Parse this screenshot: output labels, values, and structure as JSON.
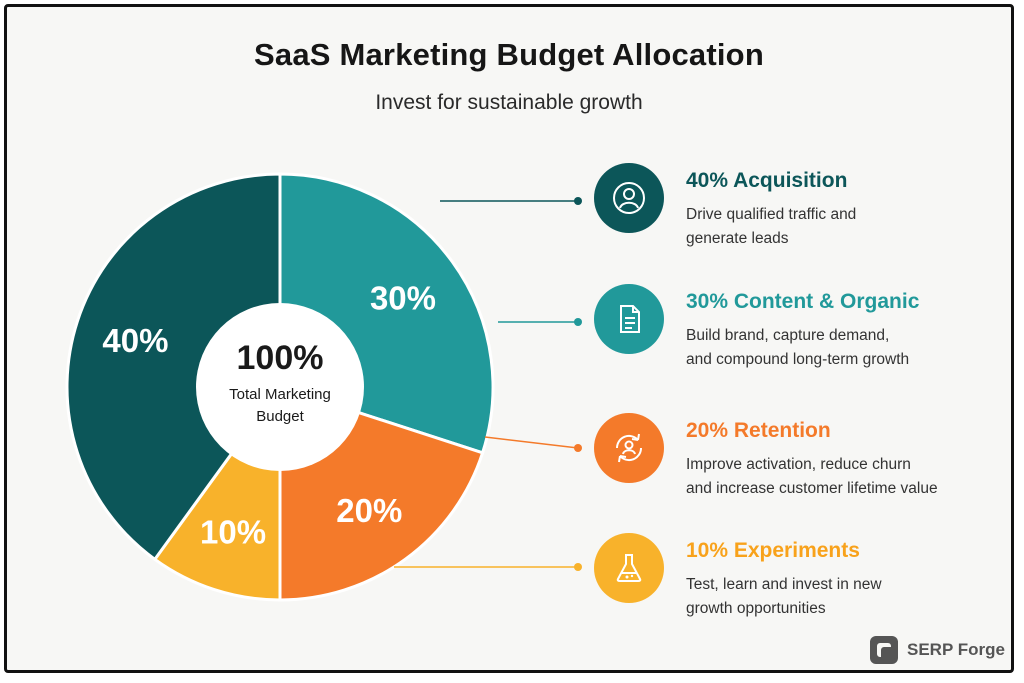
{
  "title": "SaaS Marketing Budget Allocation",
  "subtitle": "Invest for sustainable growth",
  "center": {
    "value": "100%",
    "label_line1": "Total Marketing",
    "label_line2": "Budget"
  },
  "chart_data": {
    "type": "pie",
    "title": "SaaS Marketing Budget Allocation",
    "subtitle": "Invest for sustainable growth",
    "slices": [
      {
        "name": "Content & Organic",
        "value": 30,
        "label": "30%",
        "color": "#21999a"
      },
      {
        "name": "Retention",
        "value": 20,
        "label": "20%",
        "color": "#f47a2a"
      },
      {
        "name": "Experiments",
        "value": 10,
        "label": "10%",
        "color": "#f8b22b"
      },
      {
        "name": "Acquisition",
        "value": 40,
        "label": "40%",
        "color": "#0c5659"
      }
    ]
  },
  "legend": [
    {
      "title": "40% Acquisition",
      "line1": "Drive qualified traffic and",
      "line2": "generate leads",
      "color": "#0c5659",
      "icon": "user-icon"
    },
    {
      "title": "30% Content & Organic",
      "line1": "Build brand, capture demand,",
      "line2": "and compound long-term growth",
      "color": "#21999a",
      "icon": "document-icon"
    },
    {
      "title": "20% Retention",
      "line1": "Improve activation, reduce churn",
      "line2": "and increase customer lifetime value",
      "color": "#f47a2a",
      "icon": "retention-cycle-icon"
    },
    {
      "title": "10% Experiments",
      "line1": "Test, learn and invest in new",
      "line2": "growth opportunities",
      "color": "#f8b22b",
      "icon": "flask-icon"
    }
  ],
  "brand": {
    "name": "SERP Forge",
    "color": "#555555",
    "icon": "serp-forge-logo-icon"
  }
}
